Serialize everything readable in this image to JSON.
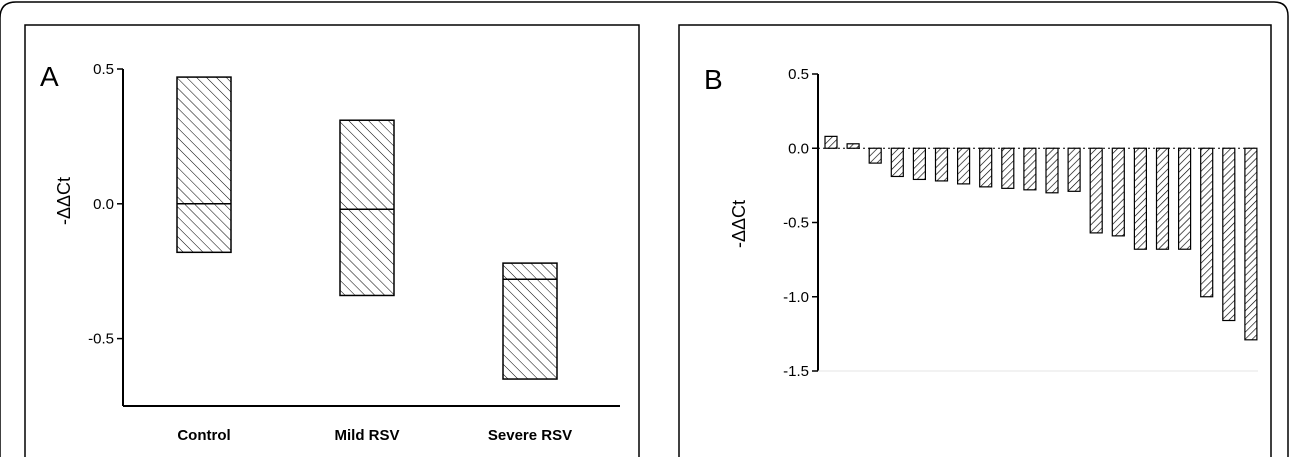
{
  "chart_data": [
    {
      "type": "box",
      "panel_label": "A",
      "ylabel": "-ΔΔCt",
      "ylim": [
        -0.75,
        0.5
      ],
      "yticks": [
        {
          "value": 0.5,
          "label": "0.5"
        },
        {
          "value": 0.0,
          "label": "0.0"
        },
        {
          "value": -0.5,
          "label": "-0.5"
        }
      ],
      "categories": [
        "Control",
        "Mild RSV",
        "Severe RSV"
      ],
      "boxes": [
        {
          "name": "Control",
          "min": -0.18,
          "median": 0.0,
          "max": 0.47
        },
        {
          "name": "Mild RSV",
          "min": -0.34,
          "median": -0.02,
          "max": 0.31
        },
        {
          "name": "Severe RSV",
          "min": -0.65,
          "median": -0.28,
          "max": -0.22
        }
      ],
      "fill_pattern": "diagonal-hatch",
      "grid": false
    },
    {
      "type": "bar",
      "panel_label": "B",
      "ylabel": "-ΔΔCt",
      "ylim": [
        -1.5,
        0.5
      ],
      "yticks": [
        {
          "value": 0.5,
          "label": "0.5"
        },
        {
          "value": 0.0,
          "label": "0.0"
        },
        {
          "value": -0.5,
          "label": "-0.5"
        },
        {
          "value": -1.0,
          "label": "-1.0"
        },
        {
          "value": -1.5,
          "label": "-1.5"
        }
      ],
      "values": [
        0.08,
        0.03,
        -0.1,
        -0.19,
        -0.21,
        -0.22,
        -0.24,
        -0.26,
        -0.27,
        -0.28,
        -0.3,
        -0.29,
        -0.57,
        -0.59,
        -0.68,
        -0.68,
        -0.68,
        -1.0,
        -1.16,
        -1.29
      ],
      "zero_line": "dotted",
      "fill_pattern": "diagonal-hatch",
      "grid": false
    }
  ]
}
